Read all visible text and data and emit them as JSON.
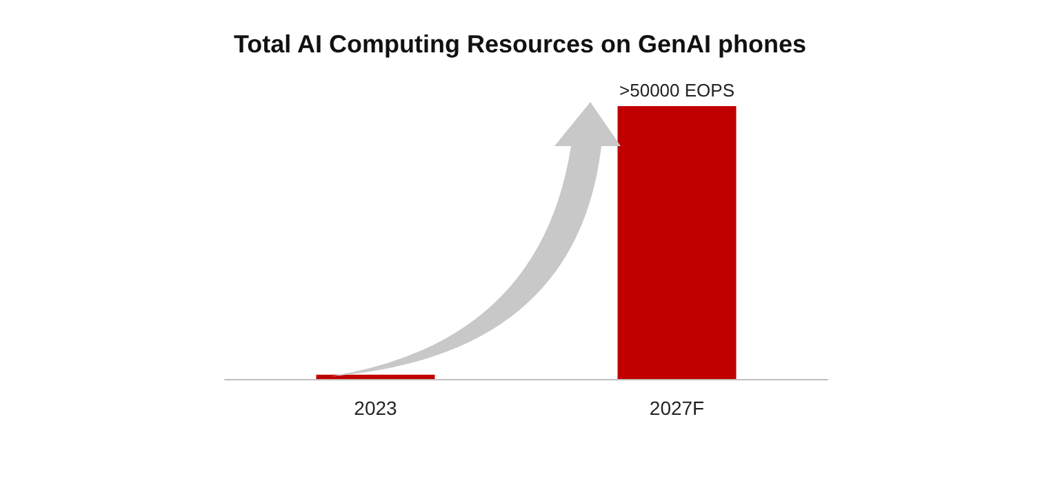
{
  "chart_data": {
    "type": "bar",
    "title": "Total AI Computing Resources on GenAI phones",
    "categories": [
      "2023",
      "2027F"
    ],
    "values": [
      800,
      50000
    ],
    "value_labels": [
      null,
      ">50000 EOPS"
    ],
    "color": "#c00000"
  }
}
